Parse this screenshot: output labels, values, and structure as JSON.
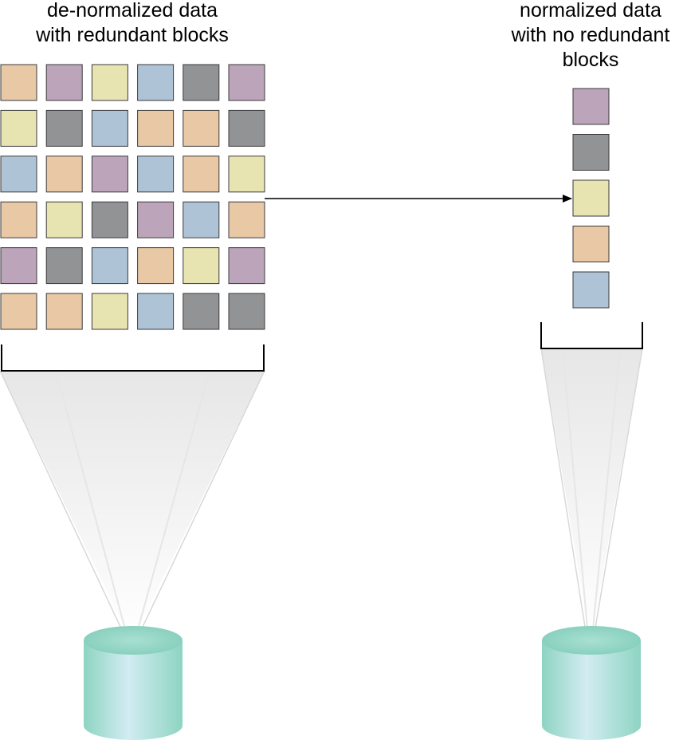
{
  "left_title": "de-normalized data\nwith redundant blocks",
  "right_title": "normalized data\nwith no redundant\nblocks",
  "colors": {
    "tan": "#E8C8A5",
    "purple": "#BCA5BA",
    "yellow": "#E8E4B2",
    "blue": "#AEC3D6",
    "gray": "#929395",
    "cylinder": "#9FDCCD",
    "cylinder_top": "#8FD2C0"
  },
  "left_grid": [
    [
      "tan",
      "purple",
      "yellow",
      "blue",
      "gray",
      "purple"
    ],
    [
      "yellow",
      "gray",
      "blue",
      "tan",
      "tan",
      "gray"
    ],
    [
      "blue",
      "tan",
      "purple",
      "blue",
      "tan",
      "yellow"
    ],
    [
      "tan",
      "yellow",
      "gray",
      "purple",
      "blue",
      "tan"
    ],
    [
      "purple",
      "gray",
      "blue",
      "tan",
      "yellow",
      "purple"
    ],
    [
      "tan",
      "tan",
      "yellow",
      "blue",
      "gray",
      "gray"
    ]
  ],
  "right_column": [
    "purple",
    "gray",
    "yellow",
    "tan",
    "blue"
  ],
  "shapes": [
    "color-block",
    "arrow",
    "bracket",
    "cone",
    "database-cylinder"
  ]
}
